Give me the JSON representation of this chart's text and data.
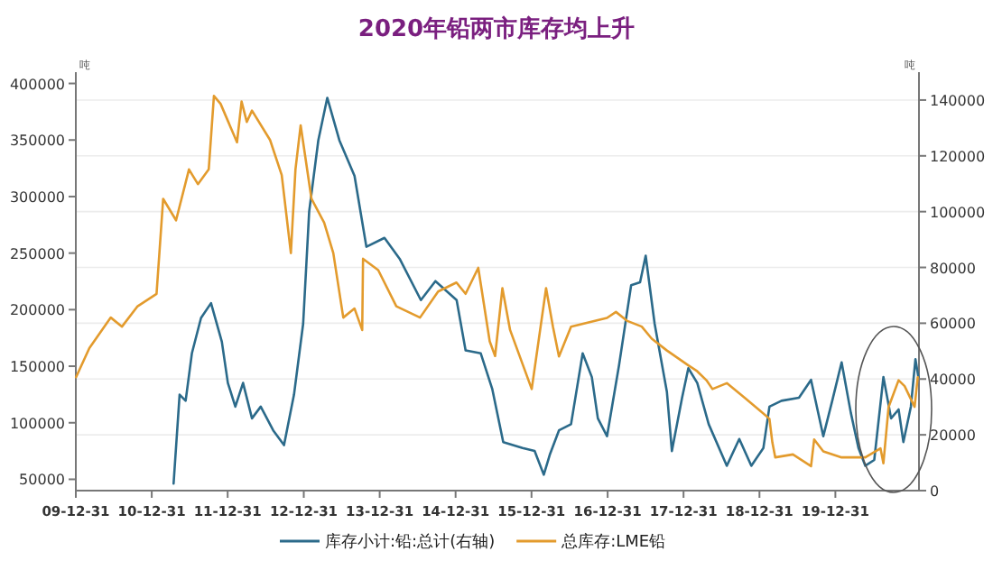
{
  "chart_data": {
    "type": "line",
    "title": "2020年铅两市库存均上升",
    "ylabel": "吨",
    "y2label": "吨",
    "xlim": [
      "2009-12-31",
      "2021-02-05"
    ],
    "xticks": [
      {
        "value": "2009-12-31",
        "label": "09-12-31"
      },
      {
        "value": "2010-12-31",
        "label": "10-12-31"
      },
      {
        "value": "2011-12-31",
        "label": "11-12-31"
      },
      {
        "value": "2012-12-31",
        "label": "12-12-31"
      },
      {
        "value": "2013-12-31",
        "label": "13-12-31"
      },
      {
        "value": "2014-12-31",
        "label": "14-12-31"
      },
      {
        "value": "2015-12-31",
        "label": "15-12-31"
      },
      {
        "value": "2016-12-31",
        "label": "16-12-31"
      },
      {
        "value": "2017-12-31",
        "label": "17-12-31"
      },
      {
        "value": "2018-12-31",
        "label": "18-12-31"
      },
      {
        "value": "2019-12-31",
        "label": "19-12-31"
      }
    ],
    "ylim": [
      40000,
      410000
    ],
    "yticks": [
      50000,
      100000,
      150000,
      200000,
      250000,
      300000,
      350000,
      400000
    ],
    "y2lim": [
      0,
      150000
    ],
    "y2ticks": [
      0,
      20000,
      40000,
      60000,
      80000,
      100000,
      120000,
      140000
    ],
    "grid": "y",
    "legend": "bottom",
    "series": [
      {
        "name": "库存小计:铅:总计(右轴)",
        "color": "#2b6a8a",
        "axis": "y2",
        "x": [
          "2011-04-15",
          "2011-05-14",
          "2011-06-12",
          "2011-07-12",
          "2011-08-25",
          "2011-10-12",
          "2011-12-03",
          "2012-01-01",
          "2012-02-06",
          "2012-03-14",
          "2012-04-26",
          "2012-06-07",
          "2012-08-06",
          "2012-09-27",
          "2012-11-14",
          "2012-12-28",
          "2013-01-26",
          "2013-03-11",
          "2013-04-23",
          "2013-06-20",
          "2013-09-01",
          "2013-10-28",
          "2014-01-23",
          "2014-04-06",
          "2014-07-17",
          "2014-09-25",
          "2015-01-05",
          "2015-02-17",
          "2015-05-01",
          "2015-06-25",
          "2015-08-17",
          "2015-11-18",
          "2016-01-15",
          "2016-02-28",
          "2016-03-29",
          "2016-05-11",
          "2016-07-08",
          "2016-09-02",
          "2016-10-16",
          "2016-11-14",
          "2016-12-28",
          "2017-02-24",
          "2017-04-23",
          "2017-06-05",
          "2017-07-02",
          "2017-08-14",
          "2017-10-12",
          "2017-11-05",
          "2017-12-24",
          "2018-01-23",
          "2018-03-07",
          "2018-05-01",
          "2018-07-27",
          "2018-09-25",
          "2018-11-22",
          "2019-01-19",
          "2019-02-17",
          "2019-04-16",
          "2019-07-09",
          "2019-09-05",
          "2019-11-03",
          "2019-12-16",
          "2020-01-30",
          "2020-03-14",
          "2020-04-20",
          "2020-05-23",
          "2020-07-05",
          "2020-08-18",
          "2020-09-24",
          "2020-10-30",
          "2020-11-22",
          "2020-12-28",
          "2021-01-19",
          "2021-02-02"
        ],
        "values": [
          2500,
          34400,
          32200,
          49200,
          61900,
          67200,
          53400,
          38600,
          30100,
          38600,
          25900,
          30100,
          21600,
          16300,
          34400,
          59800,
          100100,
          125600,
          140800,
          125600,
          112800,
          87400,
          90600,
          83100,
          68300,
          75100,
          68300,
          50300,
          49200,
          36500,
          17400,
          15300,
          14200,
          5700,
          13100,
          21600,
          23800,
          49200,
          40700,
          25900,
          19500,
          45000,
          73600,
          74700,
          84200,
          59800,
          35400,
          14200,
          33300,
          43900,
          38600,
          23800,
          8900,
          18500,
          8900,
          15300,
          30100,
          32200,
          33300,
          39700,
          19500,
          32200,
          46000,
          28000,
          15300,
          8900,
          11000,
          40700,
          25900,
          29100,
          17400,
          30100,
          47100,
          40700
        ]
      },
      {
        "name": "总库存:LME铅",
        "color": "#e39b2d",
        "x": [
          "2010-01-01",
          "2010-03-06",
          "2010-06-17",
          "2010-08-10",
          "2010-10-24",
          "2011-01-23",
          "2011-02-24",
          "2011-04-27",
          "2011-06-28",
          "2011-08-10",
          "2011-10-01",
          "2011-10-26",
          "2011-11-27",
          "2012-02-14",
          "2012-03-07",
          "2012-04-01",
          "2012-04-26",
          "2012-07-22",
          "2012-09-16",
          "2012-10-30",
          "2012-11-21",
          "2012-12-16",
          "2013-02-06",
          "2013-04-08",
          "2013-05-22",
          "2013-07-09",
          "2013-09-01",
          "2013-10-08",
          "2013-10-12",
          "2013-12-24",
          "2014-03-21",
          "2014-07-13",
          "2014-10-08",
          "2015-01-04",
          "2015-02-17",
          "2015-04-19",
          "2015-06-13",
          "2015-07-09",
          "2015-08-13",
          "2015-09-19",
          "2016-01-01",
          "2016-03-10",
          "2016-04-12",
          "2016-05-11",
          "2016-07-08",
          "2016-12-28",
          "2017-02-09",
          "2017-04-05",
          "2017-06-13",
          "2017-07-31",
          "2017-10-12",
          "2018-01-23",
          "2018-03-07",
          "2018-04-20",
          "2018-05-19",
          "2018-07-27",
          "2018-10-22",
          "2019-01-15",
          "2019-02-17",
          "2019-03-03",
          "2019-03-17",
          "2019-06-10",
          "2019-09-05",
          "2019-09-20",
          "2019-11-03",
          "2020-01-30",
          "2020-05-23",
          "2020-08-04",
          "2020-08-18",
          "2020-09-12",
          "2020-10-30",
          "2020-11-28",
          "2021-01-15",
          "2021-01-30"
        ],
        "values": [
          140300,
          166000,
          193000,
          185000,
          203000,
          214000,
          298000,
          279000,
          324000,
          311000,
          324000,
          389000,
          382000,
          348000,
          384000,
          366000,
          376000,
          350000,
          319000,
          250000,
          324000,
          363000,
          298000,
          277000,
          250000,
          193000,
          201000,
          182000,
          245000,
          235000,
          203000,
          193000,
          216000,
          224000,
          214000,
          237000,
          172000,
          159000,
          219000,
          182000,
          129800,
          219000,
          185000,
          158600,
          185000,
          192700,
          198000,
          190000,
          185000,
          174400,
          163900,
          150800,
          145500,
          137600,
          129800,
          135000,
          121900,
          108800,
          103500,
          82600,
          69400,
          72000,
          61600,
          85200,
          74700,
          69400,
          69400,
          77300,
          64200,
          114000,
          137600,
          132400,
          114000,
          140300
        ]
      }
    ]
  }
}
